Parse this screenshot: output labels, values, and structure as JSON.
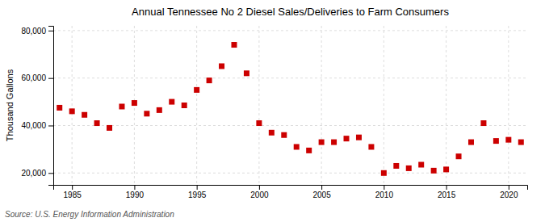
{
  "chart_data": {
    "type": "scatter",
    "title": "Annual Tennessee No 2 Diesel Sales/Deliveries to Farm Consumers",
    "ylabel": "Thousand Gallons",
    "source": "Source: U.S. Energy Information Administration",
    "x": [
      1984,
      1985,
      1986,
      1987,
      1988,
      1989,
      1990,
      1991,
      1992,
      1993,
      1994,
      1995,
      1996,
      1997,
      1998,
      1999,
      2000,
      2001,
      2002,
      2003,
      2004,
      2005,
      2006,
      2007,
      2008,
      2009,
      2010,
      2011,
      2012,
      2013,
      2014,
      2015,
      2016,
      2017,
      2018,
      2019,
      2020,
      2021
    ],
    "values": [
      47500,
      46000,
      44500,
      41000,
      39000,
      48000,
      49500,
      45000,
      46500,
      50000,
      48500,
      55000,
      59000,
      65000,
      74000,
      62000,
      41000,
      37000,
      36000,
      31000,
      29500,
      33000,
      33000,
      34500,
      35000,
      31000,
      20000,
      23000,
      22000,
      23500,
      21000,
      21500,
      27000,
      33000,
      41000,
      33500,
      34000,
      33000
    ],
    "color": "#cc0000",
    "marker": "square",
    "grid": true,
    "xlim": [
      1983.5,
      2021.5
    ],
    "xticks": [
      1985,
      1990,
      1995,
      2000,
      2005,
      2010,
      2015,
      2020
    ],
    "ylim": [
      15000,
      82000
    ],
    "yticks": [
      {
        "value": 20000,
        "label": "20,000"
      },
      {
        "value": 40000,
        "label": "40,000"
      },
      {
        "value": 60000,
        "label": "60,000"
      },
      {
        "value": 80000,
        "label": "80,000"
      }
    ]
  }
}
